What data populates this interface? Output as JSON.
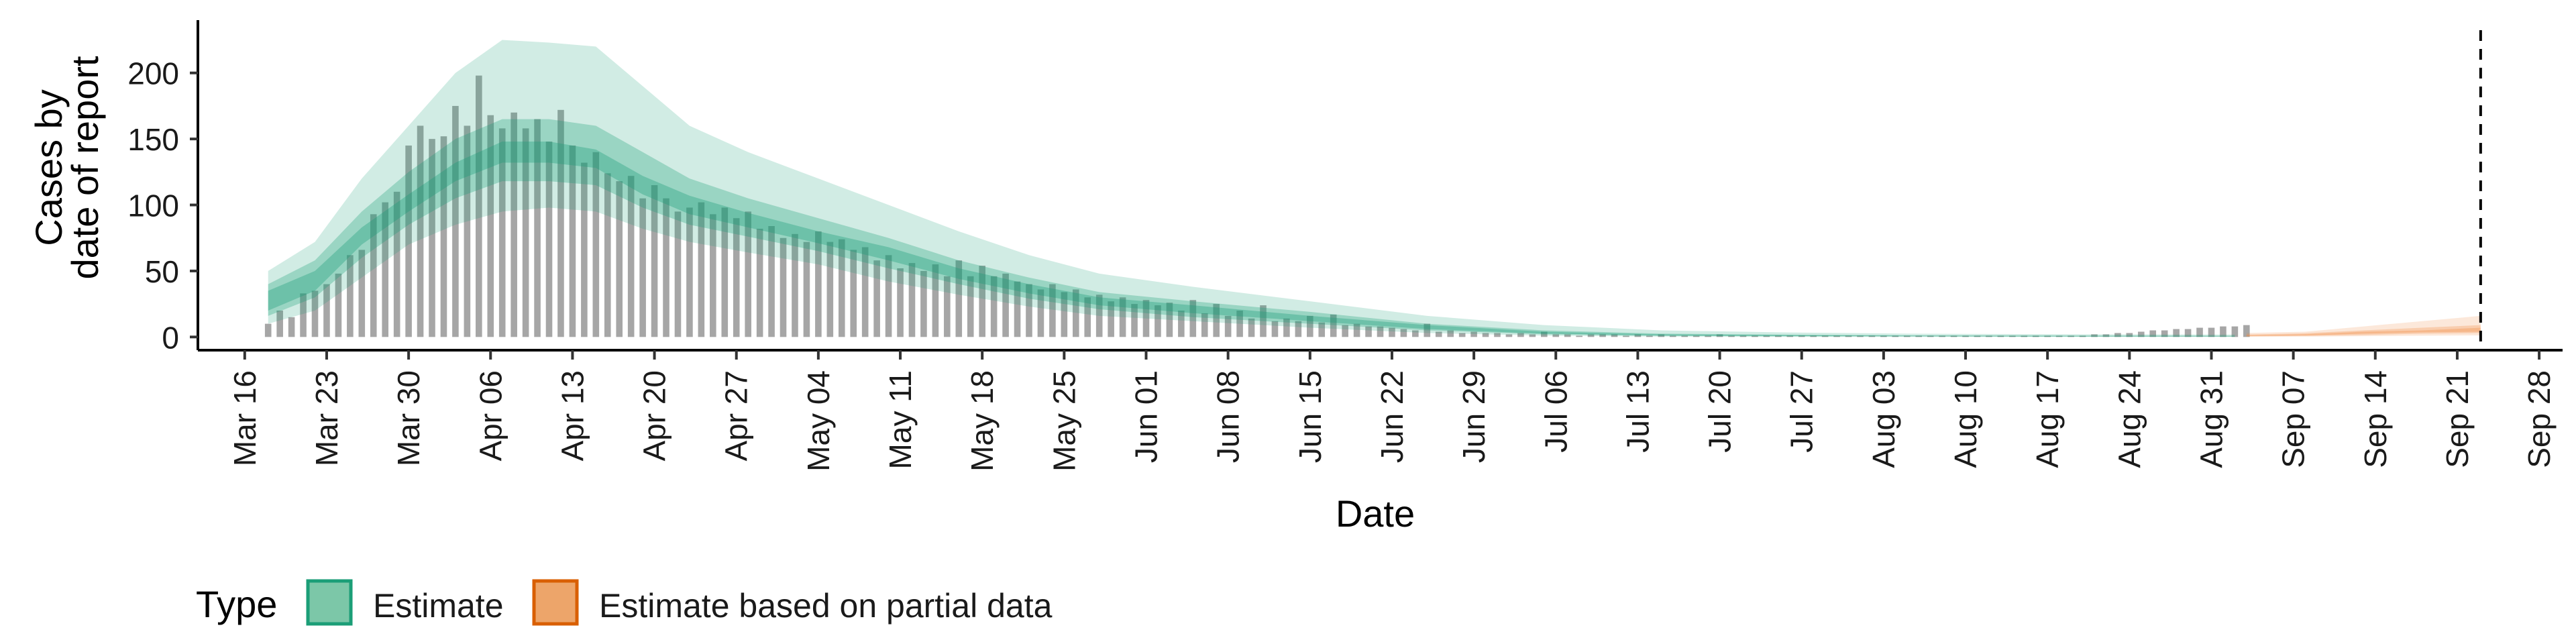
{
  "chart_data": {
    "type": "area",
    "title": "",
    "xlabel": "Date",
    "ylabel_lines": [
      "Cases by",
      "date of report"
    ],
    "ylim": [
      -10,
      240
    ],
    "y_ticks": [
      0,
      50,
      100,
      150,
      200
    ],
    "x_start": "2020-03-12",
    "x_end": "2020-09-30",
    "x_ticks": [
      {
        "date": "2020-03-16",
        "label": "Mar 16"
      },
      {
        "date": "2020-03-23",
        "label": "Mar 23"
      },
      {
        "date": "2020-03-30",
        "label": "Mar 30"
      },
      {
        "date": "2020-04-06",
        "label": "Apr 06"
      },
      {
        "date": "2020-04-13",
        "label": "Apr 13"
      },
      {
        "date": "2020-04-20",
        "label": "Apr 20"
      },
      {
        "date": "2020-04-27",
        "label": "Apr 27"
      },
      {
        "date": "2020-05-04",
        "label": "May 04"
      },
      {
        "date": "2020-05-11",
        "label": "May 11"
      },
      {
        "date": "2020-05-18",
        "label": "May 18"
      },
      {
        "date": "2020-05-25",
        "label": "May 25"
      },
      {
        "date": "2020-06-01",
        "label": "Jun 01"
      },
      {
        "date": "2020-06-08",
        "label": "Jun 08"
      },
      {
        "date": "2020-06-15",
        "label": "Jun 15"
      },
      {
        "date": "2020-06-22",
        "label": "Jun 22"
      },
      {
        "date": "2020-06-29",
        "label": "Jun 29"
      },
      {
        "date": "2020-07-06",
        "label": "Jul 06"
      },
      {
        "date": "2020-07-13",
        "label": "Jul 13"
      },
      {
        "date": "2020-07-20",
        "label": "Jul 20"
      },
      {
        "date": "2020-07-27",
        "label": "Jul 27"
      },
      {
        "date": "2020-08-03",
        "label": "Aug 03"
      },
      {
        "date": "2020-08-10",
        "label": "Aug 10"
      },
      {
        "date": "2020-08-17",
        "label": "Aug 17"
      },
      {
        "date": "2020-08-24",
        "label": "Aug 24"
      },
      {
        "date": "2020-08-31",
        "label": "Aug 31"
      },
      {
        "date": "2020-09-07",
        "label": "Sep 07"
      },
      {
        "date": "2020-09-14",
        "label": "Sep 14"
      },
      {
        "date": "2020-09-21",
        "label": "Sep 21"
      },
      {
        "date": "2020-09-28",
        "label": "Sep 28"
      }
    ],
    "vline_date": "2020-09-23",
    "legend": {
      "title": "Type",
      "position": "bottom-left",
      "items": [
        {
          "label": "Estimate",
          "fill": "#66c2a5",
          "border": "#1b9e77"
        },
        {
          "label": "Estimate based on partial data",
          "fill": "#fc8d62",
          "border": "#d95f02"
        }
      ]
    },
    "colors": {
      "estimate": "#1b9e77",
      "partial": "#f28e48",
      "bars": "#a6a6a6",
      "vline": "#000000",
      "axis": "#000000"
    },
    "observed_cases": {
      "start": "2020-03-18",
      "values": [
        10,
        20,
        15,
        33,
        35,
        40,
        48,
        62,
        66,
        93,
        102,
        110,
        145,
        160,
        150,
        152,
        175,
        160,
        198,
        168,
        158,
        170,
        158,
        165,
        148,
        172,
        145,
        132,
        140,
        124,
        118,
        122,
        105,
        115,
        105,
        95,
        98,
        102,
        93,
        98,
        90,
        95,
        82,
        84,
        75,
        78,
        72,
        80,
        72,
        74,
        66,
        68,
        58,
        62,
        52,
        56,
        50,
        55,
        46,
        58,
        46,
        54,
        46,
        48,
        42,
        40,
        36,
        40,
        34,
        36,
        30,
        32,
        27,
        30,
        25,
        28,
        24,
        26,
        20,
        28,
        18,
        25,
        16,
        20,
        14,
        24,
        12,
        14,
        12,
        16,
        11,
        17,
        9,
        10,
        8,
        8,
        7,
        6,
        5,
        10,
        4,
        5,
        3,
        4,
        3,
        3,
        2,
        3,
        2,
        4,
        2,
        2,
        1,
        2,
        2,
        2,
        1,
        2,
        1,
        2,
        1,
        1,
        1,
        1,
        2,
        1,
        1,
        1,
        1,
        1,
        1,
        1,
        1,
        1,
        1,
        1,
        1,
        1,
        1,
        1,
        1,
        1,
        1,
        1,
        1,
        1,
        1,
        1,
        1,
        1,
        1,
        1,
        1,
        1,
        1,
        1,
        2,
        2,
        3,
        3,
        4,
        5,
        5,
        6,
        6,
        7,
        7,
        8,
        8,
        9
      ]
    },
    "estimate_series": {
      "date": [
        "2020-03-18",
        "2020-03-22",
        "2020-03-26",
        "2020-03-30",
        "2020-04-03",
        "2020-04-07",
        "2020-04-11",
        "2020-04-15",
        "2020-04-19",
        "2020-04-23",
        "2020-04-28",
        "2020-05-04",
        "2020-05-10",
        "2020-05-16",
        "2020-05-22",
        "2020-05-28",
        "2020-06-05",
        "2020-06-15",
        "2020-06-25",
        "2020-07-05",
        "2020-07-15",
        "2020-07-25",
        "2020-08-05",
        "2020-08-20",
        "2020-09-02"
      ],
      "median": [
        28,
        42,
        75,
        100,
        125,
        140,
        140,
        135,
        115,
        100,
        88,
        75,
        63,
        48,
        37,
        27,
        21,
        14,
        7,
        3,
        1.5,
        1,
        0.8,
        0.6,
        0.5
      ],
      "lower_20": [
        20,
        35,
        70,
        95,
        118,
        132,
        132,
        128,
        108,
        93,
        83,
        71,
        58,
        44,
        33,
        24,
        18,
        12,
        6,
        2.5,
        1.2,
        0.8,
        0.6,
        0.4,
        0.4
      ],
      "upper_20": [
        35,
        50,
        83,
        108,
        132,
        148,
        148,
        142,
        122,
        107,
        94,
        80,
        68,
        52,
        40,
        30,
        24,
        16,
        9,
        4,
        2,
        1.5,
        1,
        0.8,
        0.7
      ],
      "lower_50": [
        16,
        30,
        60,
        85,
        105,
        118,
        118,
        115,
        98,
        85,
        76,
        65,
        52,
        40,
        29,
        21,
        15,
        10,
        5,
        2,
        0.8,
        0.5,
        0.4,
        0.3,
        0.3
      ],
      "upper_50": [
        40,
        58,
        95,
        125,
        150,
        165,
        165,
        160,
        140,
        120,
        105,
        90,
        75,
        58,
        45,
        34,
        27,
        19,
        10,
        5,
        2.5,
        1.8,
        1.2,
        1,
        0.9
      ],
      "lower_90": [
        10,
        20,
        45,
        70,
        85,
        95,
        98,
        95,
        82,
        72,
        64,
        55,
        42,
        32,
        23,
        16,
        12,
        7,
        3,
        1,
        0.3,
        0.2,
        0.1,
        0.1,
        0.1
      ],
      "upper_90": [
        50,
        72,
        120,
        160,
        200,
        225,
        223,
        220,
        190,
        160,
        140,
        120,
        100,
        80,
        62,
        48,
        38,
        27,
        16,
        9,
        5,
        3.5,
        2.5,
        2,
        1.8
      ]
    },
    "partial_series": {
      "date": [
        "2020-09-03",
        "2020-09-08",
        "2020-09-13",
        "2020-09-18",
        "2020-09-23"
      ],
      "median": [
        1,
        1.5,
        3,
        4,
        5
      ],
      "lower_20": [
        0.8,
        1.2,
        2.5,
        3.5,
        4
      ],
      "upper_20": [
        1.3,
        2,
        4,
        5,
        7
      ],
      "lower_50": [
        0.5,
        0.8,
        1.5,
        2.5,
        3
      ],
      "upper_50": [
        1.8,
        2.8,
        5,
        7,
        9
      ],
      "lower_90": [
        0.2,
        0.3,
        0.6,
        1,
        1.2
      ],
      "upper_90": [
        3,
        4,
        8,
        12,
        16
      ]
    }
  }
}
